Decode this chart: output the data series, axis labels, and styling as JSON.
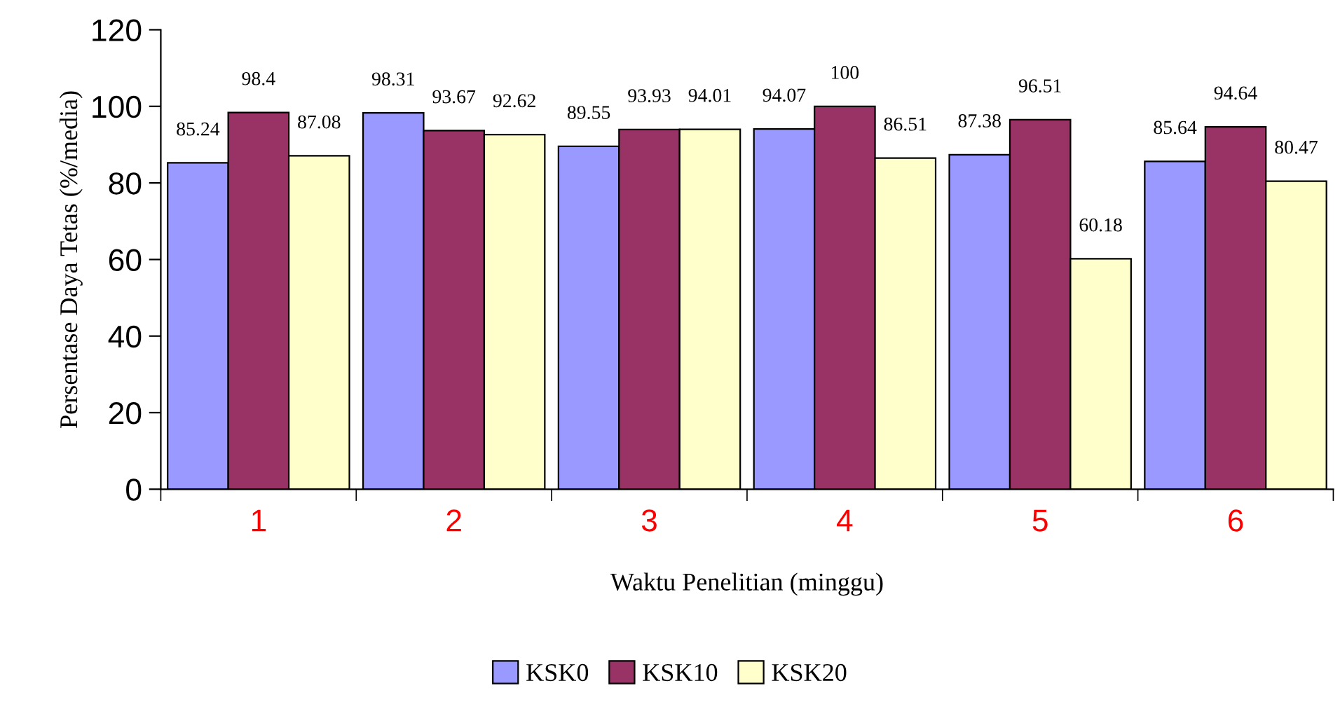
{
  "chart_data": {
    "type": "bar",
    "xlabel": "Waktu Penelitian (minggu)",
    "ylabel": "Persentase Daya Tetas (%/media)",
    "categories": [
      "1",
      "2",
      "3",
      "4",
      "5",
      "6"
    ],
    "series": [
      {
        "name": "KSK0",
        "color": "#9999ff",
        "values": [
          85.24,
          98.31,
          89.55,
          94.07,
          87.38,
          85.64
        ]
      },
      {
        "name": "KSK10",
        "color": "#993366",
        "values": [
          98.4,
          93.67,
          93.93,
          100,
          96.51,
          94.64
        ]
      },
      {
        "name": "KSK20",
        "color": "#ffffcc",
        "values": [
          87.08,
          92.62,
          94.01,
          86.51,
          60.18,
          80.47
        ]
      }
    ],
    "ylim": [
      0,
      120
    ],
    "yticks": [
      0,
      20,
      40,
      60,
      80,
      100,
      120
    ],
    "grid": false,
    "legend": "bottom",
    "data_labels": true
  }
}
